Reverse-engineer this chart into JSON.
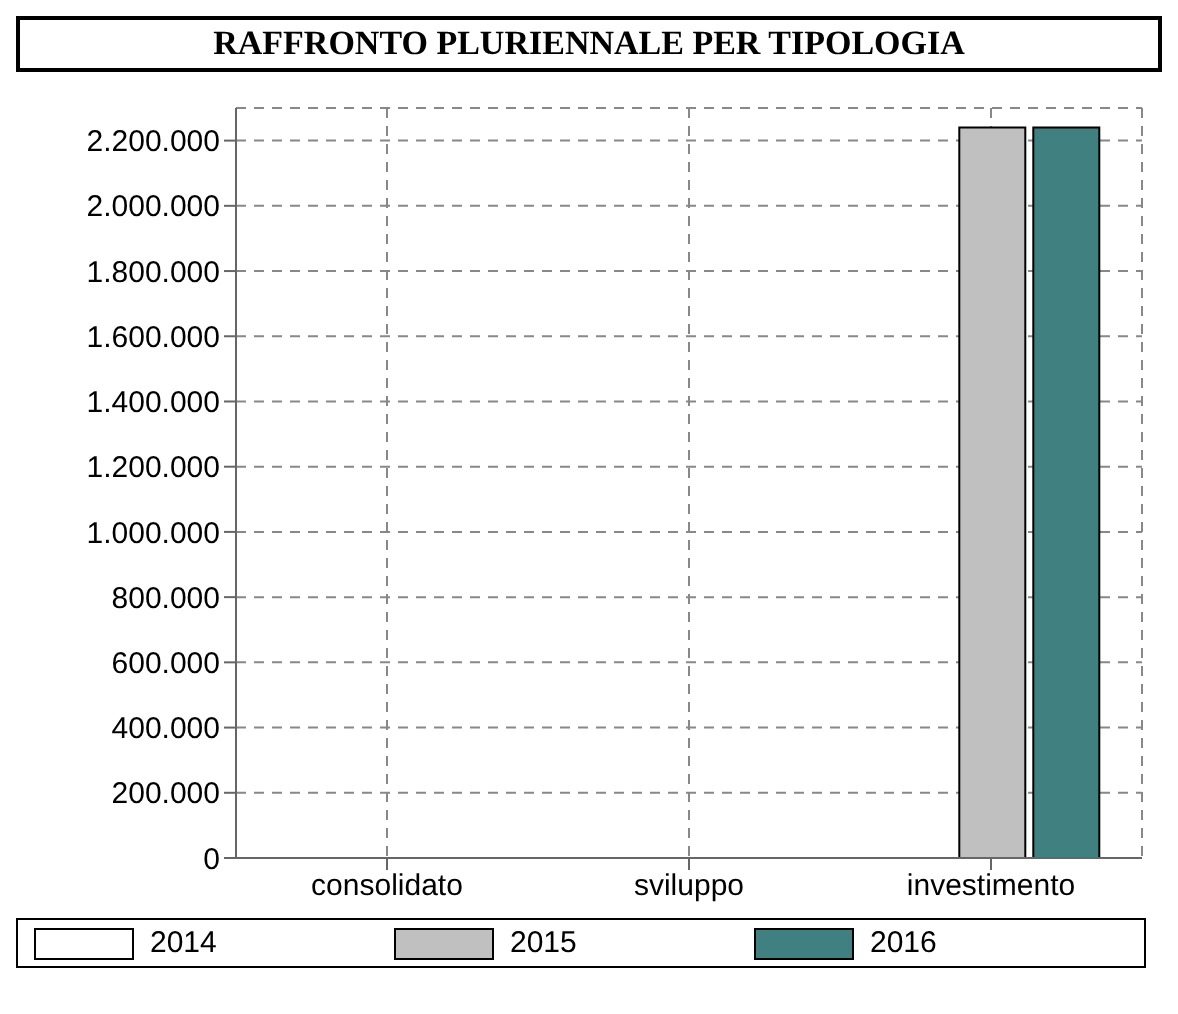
{
  "chart_data": {
    "type": "bar",
    "title": "RAFFRONTO PLURIENNALE PER TIPOLOGIA",
    "categories": [
      "consolidato",
      "sviluppo",
      "investimento"
    ],
    "series": [
      {
        "name": "2014",
        "color": "#ffffff",
        "values": [
          0,
          0,
          0
        ]
      },
      {
        "name": "2015",
        "color": "#c0c0c0",
        "values": [
          0,
          0,
          2240000
        ]
      },
      {
        "name": "2016",
        "color": "#408080",
        "values": [
          0,
          0,
          2240000
        ]
      }
    ],
    "ylim": [
      0,
      2300000
    ],
    "yticks": [
      0,
      {
        "value": 200000,
        "label": "200.000"
      },
      {
        "value": 400000,
        "label": "400.000"
      },
      {
        "value": 600000,
        "label": "600.000"
      },
      {
        "value": 800000,
        "label": "800.000"
      },
      {
        "value": 1000000,
        "label": "1.000.000"
      },
      {
        "value": 1200000,
        "label": "1.200.000"
      },
      {
        "value": 1400000,
        "label": "1.400.000"
      },
      {
        "value": 1600000,
        "label": "1.600.000"
      },
      {
        "value": 1800000,
        "label": "1.800.000"
      },
      {
        "value": 2000000,
        "label": "2.000.000"
      },
      {
        "value": 2200000,
        "label": "2.200.000"
      }
    ],
    "grid": true,
    "legend": "bottom"
  }
}
